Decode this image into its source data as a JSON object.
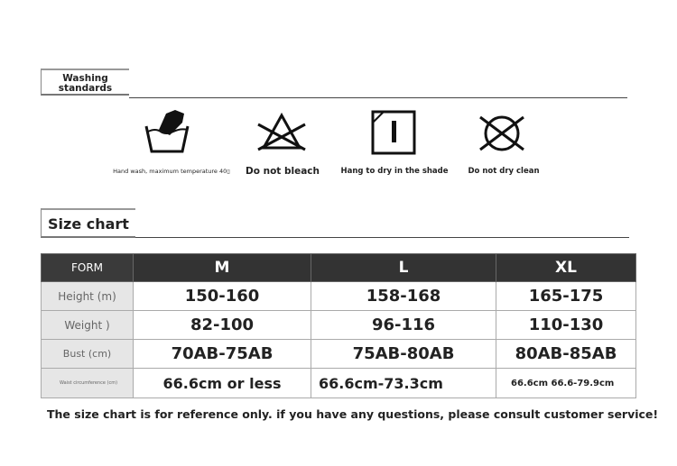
{
  "washing": {
    "title_line1": "Washing",
    "title_line2": "standards",
    "items": [
      {
        "icon": "hand-wash-icon",
        "label": "Hand wash, maximum temperature 40▯"
      },
      {
        "icon": "do-not-bleach-icon",
        "label": "Do not bleach"
      },
      {
        "icon": "hang-dry-shade-icon",
        "label": "Hang to dry in the shade"
      },
      {
        "icon": "do-not-dry-clean-icon",
        "label": "Do not dry clean"
      }
    ]
  },
  "size_chart": {
    "title": "Size chart",
    "headers": [
      "FORM",
      "M",
      "L",
      "XL"
    ],
    "rows": [
      {
        "label": "Height (m)",
        "values": [
          "150-160",
          "158-168",
          "165-175"
        ]
      },
      {
        "label": "Weight )",
        "values": [
          "82-100",
          "96-116",
          "110-130"
        ]
      },
      {
        "label": "Bust (cm)",
        "values": [
          "70AB-75AB",
          "75AB-80AB",
          "80AB-85AB"
        ]
      },
      {
        "label": "Waist circumference (cm)",
        "values": [
          "66.6cm or less",
          "66.6cm-73.3cm",
          "66.6cm  66.6-79.9cm"
        ]
      }
    ]
  },
  "note": "The size chart is for reference only. if you have any questions, please consult customer service!"
}
